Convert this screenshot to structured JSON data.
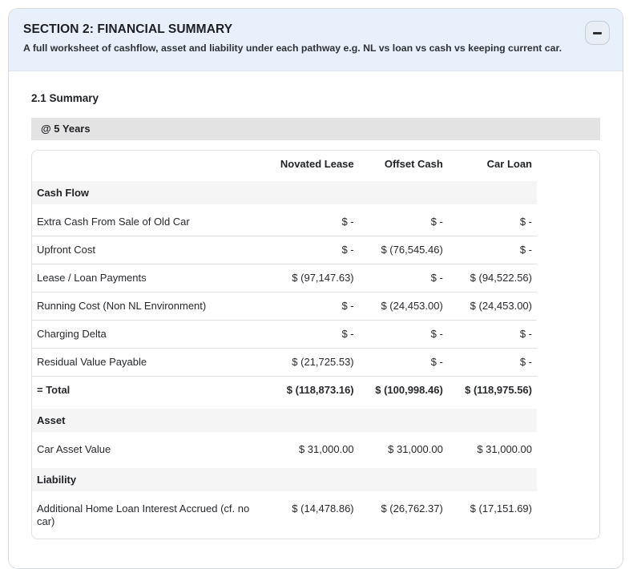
{
  "section_header": {
    "title": "SECTION 2: FINANCIAL SUMMARY",
    "subtitle": "A full worksheet of cashflow, asset and liability under each pathway e.g. NL vs loan vs cash vs keeping current car.",
    "collapse_icon": "minus-icon"
  },
  "summary": {
    "heading": "2.1 Summary",
    "period_label": "@ 5 Years"
  },
  "table": {
    "columns": [
      "",
      "Novated Lease",
      "Offset Cash",
      "Car Loan"
    ],
    "rows": [
      {
        "type": "section",
        "label": "Cash Flow"
      },
      {
        "type": "data",
        "label": "Extra Cash From Sale of Old Car",
        "values": [
          "$ -",
          "$ -",
          "$ -"
        ]
      },
      {
        "type": "data",
        "label": "Upfront Cost",
        "values": [
          "$ -",
          "$ (76,545.46)",
          "$ -"
        ]
      },
      {
        "type": "data",
        "label": "Lease / Loan Payments",
        "values": [
          "$ (97,147.63)",
          "$ -",
          "$ (94,522.56)"
        ]
      },
      {
        "type": "data",
        "label": "Running Cost (Non NL Environment)",
        "values": [
          "$ -",
          "$ (24,453.00)",
          "$ (24,453.00)"
        ]
      },
      {
        "type": "data",
        "label": "Charging Delta",
        "values": [
          "$ -",
          "$ -",
          "$ -"
        ]
      },
      {
        "type": "data",
        "label": "Residual Value Payable",
        "values": [
          "$ (21,725.53)",
          "$ -",
          "$ -"
        ]
      },
      {
        "type": "total",
        "label": "= Total",
        "values": [
          "$ (118,873.16)",
          "$ (100,998.46)",
          "$ (118,975.56)"
        ]
      },
      {
        "type": "section",
        "label": "Asset"
      },
      {
        "type": "data",
        "label": "Car Asset Value",
        "values": [
          "$ 31,000.00",
          "$ 31,000.00",
          "$ 31,000.00"
        ]
      },
      {
        "type": "section",
        "label": "Liability"
      },
      {
        "type": "data",
        "label": "Additional Home Loan Interest Accrued (cf. no car)",
        "values": [
          "$ (14,478.86)",
          "$ (26,762.37)",
          "$ (17,151.69)"
        ]
      }
    ]
  },
  "colors": {
    "header_bg": "#e8f0fb",
    "period_bar_bg": "#e3e3e3",
    "section_row_bg": "#f5f5f5",
    "table_border": "#e0e0e0",
    "header_underline": "#5f6368"
  }
}
